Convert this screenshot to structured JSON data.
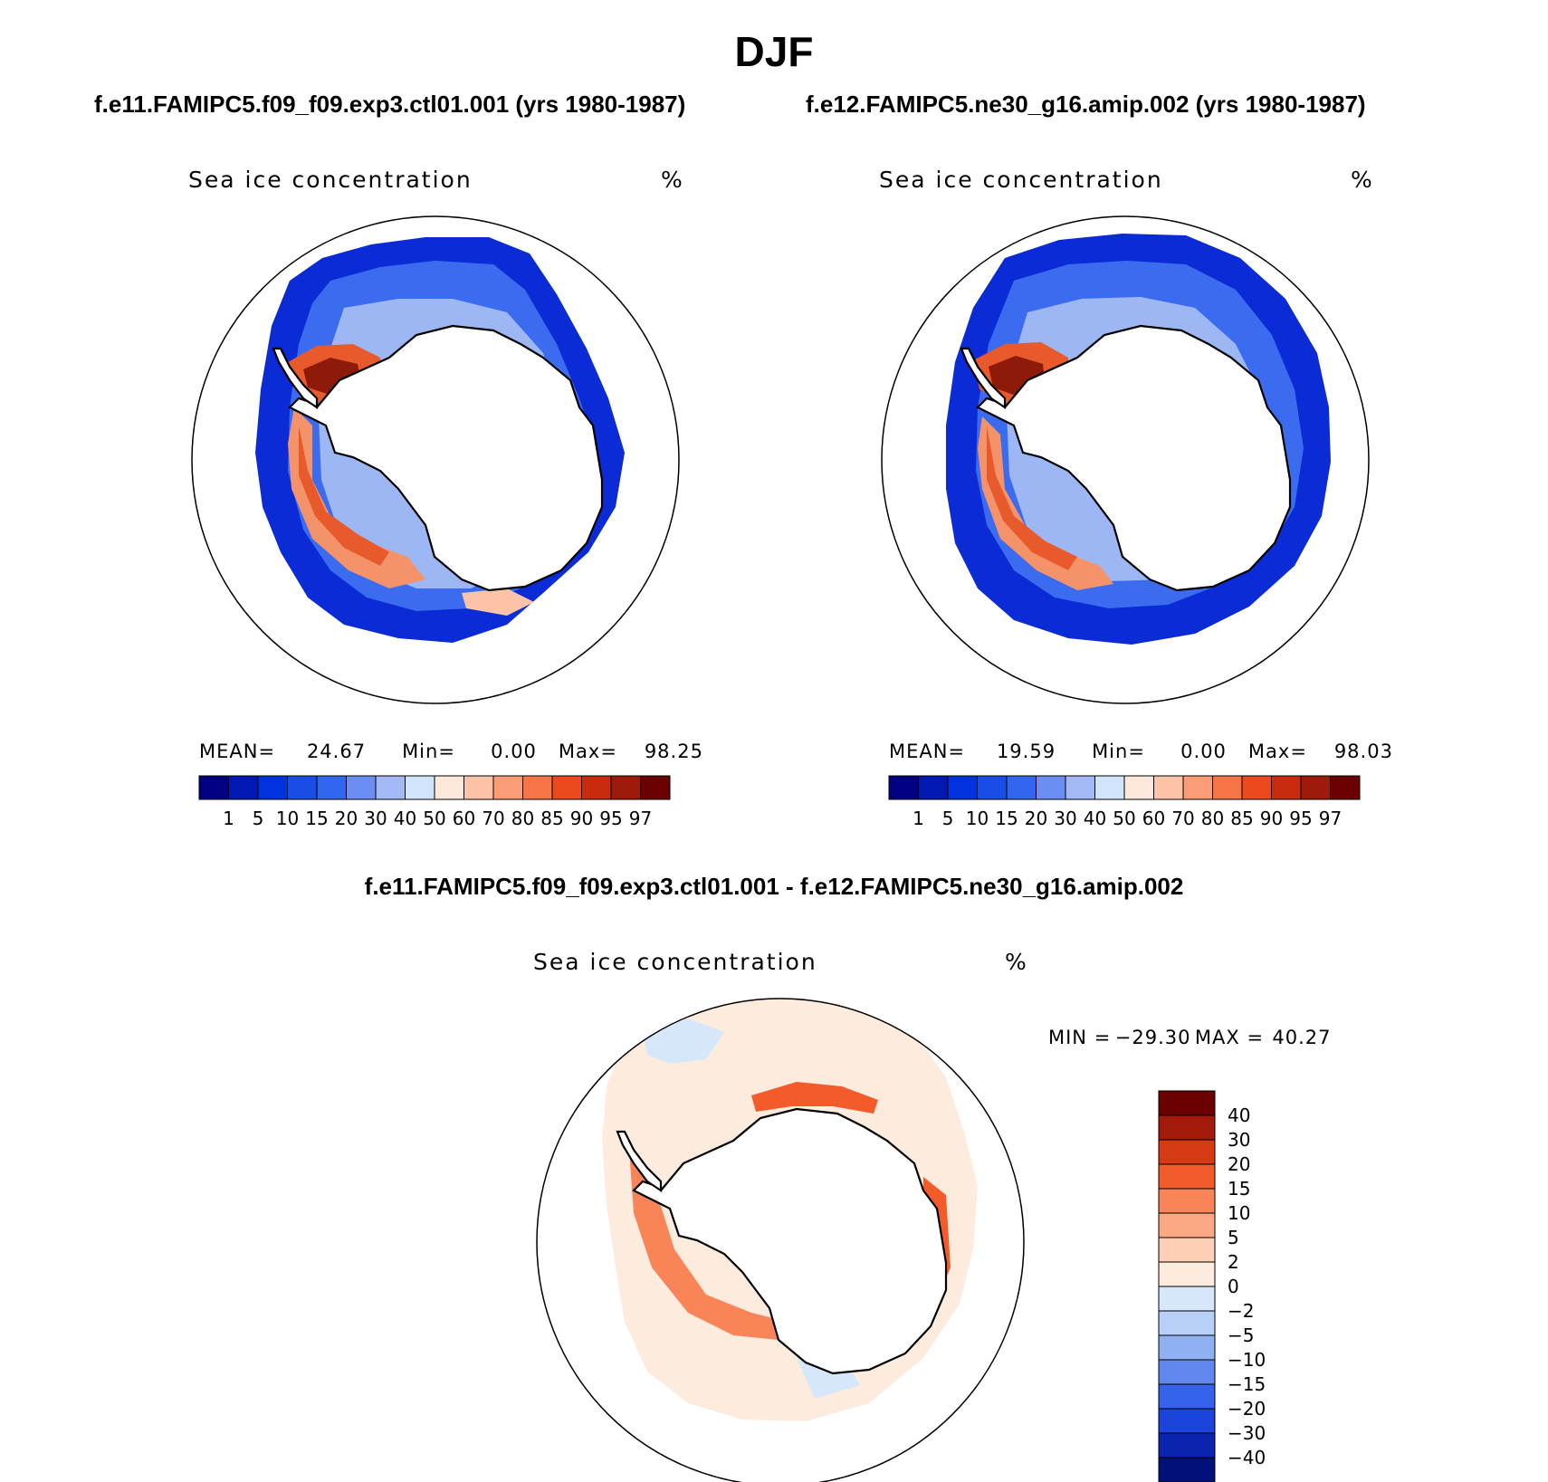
{
  "figure": {
    "season": "DJF",
    "case_a_title": "f.e11.FAMIPC5.f09_f09.exp3.ctl01.001 (yrs 1980-1987)",
    "case_b_title": "f.e12.FAMIPC5.ne30_g16.amip.002 (yrs 1980-1987)",
    "diff_title": "f.e11.FAMIPC5.f09_f09.exp3.ctl01.001 - f.e12.FAMIPC5.ne30_g16.amip.002"
  },
  "panels": [
    {
      "id": "case-a",
      "variable": "Sea ice concentration",
      "units": "%",
      "stats": {
        "mean_label": "MEAN=",
        "mean": "24.67",
        "min_label": "Min=",
        "min": "0.00",
        "max_label": "Max=",
        "max": "98.25"
      }
    },
    {
      "id": "case-b",
      "variable": "Sea ice concentration",
      "units": "%",
      "stats": {
        "mean_label": "MEAN=",
        "mean": "19.59",
        "min_label": "Min=",
        "min": "0.00",
        "max_label": "Max=",
        "max": "98.03"
      }
    },
    {
      "id": "difference",
      "variable": "Sea ice concentration",
      "units": "%",
      "stats": {
        "min_label": "MIN =",
        "min": "−29.30",
        "max_label": "MAX =",
        "max": "40.27"
      }
    }
  ],
  "colorbars": {
    "concentration": {
      "levels": [
        "1",
        "5",
        "10",
        "15",
        "20",
        "30",
        "40",
        "50",
        "60",
        "70",
        "80",
        "85",
        "90",
        "95",
        "97"
      ],
      "colors": [
        "#000080",
        "#0019b3",
        "#0033dd",
        "#1a4de6",
        "#3366ee",
        "#6b8ef2",
        "#a2b9f6",
        "#d2e4fb",
        "#fde8dc",
        "#fcc3a8",
        "#fa9d76",
        "#f77446",
        "#eb4a1e",
        "#c82b0e",
        "#9e1a0a",
        "#6b0000"
      ]
    },
    "difference": {
      "levels": [
        "40",
        "30",
        "20",
        "15",
        "10",
        "5",
        "2",
        "0",
        "−2",
        "−5",
        "−10",
        "−15",
        "−20",
        "−30",
        "−40"
      ],
      "colors": [
        "#6b0000",
        "#a3190a",
        "#d63a12",
        "#f45b2a",
        "#f98457",
        "#fba985",
        "#fccfb6",
        "#fdebdd",
        "#d6e7fb",
        "#b8d0f7",
        "#8fb0f3",
        "#5f87ee",
        "#3463ea",
        "#1a44dc",
        "#0a24b0",
        "#00127a"
      ]
    }
  }
}
